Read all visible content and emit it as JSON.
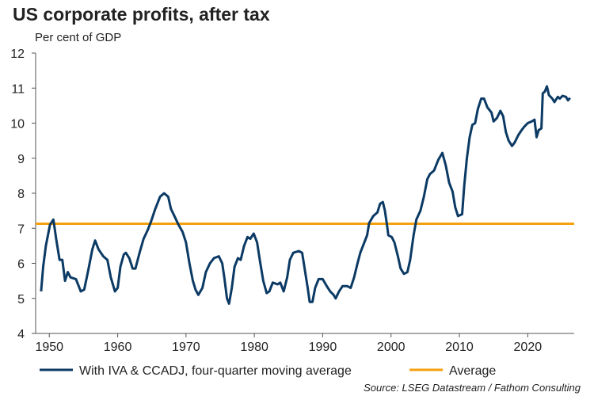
{
  "chart_data": {
    "type": "line",
    "title": "US corporate profits, after tax",
    "subtitle": "Per cent of GDP",
    "source": "Source: LSEG Datastream / Fathom Consulting",
    "x": [
      1948.8,
      1949.1,
      1949.5,
      1950.1,
      1950.6,
      1951.0,
      1951.5,
      1951.9,
      1952.3,
      1952.7,
      1953.1,
      1953.9,
      1954.6,
      1955.1,
      1955.7,
      1956.3,
      1956.7,
      1957.2,
      1957.9,
      1958.5,
      1959.0,
      1959.6,
      1960.0,
      1960.4,
      1960.9,
      1961.2,
      1961.7,
      1962.2,
      1962.6,
      1963.2,
      1963.8,
      1964.4,
      1964.9,
      1965.5,
      1966.2,
      1966.8,
      1967.4,
      1967.8,
      1968.3,
      1968.9,
      1969.5,
      1970.0,
      1970.5,
      1971.0,
      1971.4,
      1971.8,
      1972.4,
      1972.9,
      1973.5,
      1974.1,
      1974.8,
      1975.3,
      1975.6,
      1976.0,
      1976.3,
      1976.7,
      1977.1,
      1977.6,
      1978.0,
      1978.5,
      1979.0,
      1979.4,
      1979.9,
      1980.4,
      1980.8,
      1981.3,
      1981.8,
      1982.2,
      1982.7,
      1983.4,
      1983.8,
      1984.3,
      1984.8,
      1985.2,
      1985.7,
      1986.5,
      1987.0,
      1987.4,
      1987.8,
      1988.1,
      1988.5,
      1988.9,
      1989.4,
      1990.0,
      1990.6,
      1991.1,
      1991.6,
      1991.9,
      1992.4,
      1992.9,
      1993.6,
      1994.1,
      1994.6,
      1995.1,
      1995.5,
      1996.0,
      1996.5,
      1996.8,
      1997.4,
      1998.0,
      1998.4,
      1998.8,
      1999.1,
      1999.4,
      1999.6,
      2000.1,
      2000.5,
      2001.0,
      2001.4,
      2001.9,
      2002.4,
      2002.8,
      2003.3,
      2003.7,
      2004.3,
      2004.8,
      2005.3,
      2005.7,
      2006.3,
      2006.9,
      2007.5,
      2008.0,
      2008.5,
      2009.0,
      2009.4,
      2009.8,
      2010.4,
      2010.7,
      2011.1,
      2011.5,
      2011.9,
      2012.3,
      2012.7,
      2013.2,
      2013.6,
      2014.1,
      2014.7,
      2015.0,
      2015.5,
      2016.0,
      2016.4,
      2016.8,
      2017.2,
      2017.7,
      2018.1,
      2018.6,
      2019.1,
      2019.5,
      2020.0,
      2020.6,
      2021.0,
      2021.3,
      2021.6,
      2022.0,
      2022.2,
      2022.5,
      2022.8,
      2023.1,
      2023.6,
      2023.9,
      2024.4,
      2024.7,
      2025.1,
      2025.6,
      2025.9,
      2026.2
    ],
    "series": [
      {
        "name": "With IVA & CCADJ, four-quarter moving average",
        "color": "#0b3a64",
        "values": [
          5.2,
          5.9,
          6.5,
          7.1,
          7.25,
          6.7,
          6.1,
          6.1,
          5.5,
          5.75,
          5.6,
          5.55,
          5.2,
          5.25,
          5.8,
          6.4,
          6.65,
          6.4,
          6.2,
          6.1,
          5.6,
          5.2,
          5.3,
          5.9,
          6.25,
          6.3,
          6.15,
          5.85,
          5.85,
          6.3,
          6.7,
          6.95,
          7.2,
          7.55,
          7.9,
          8.0,
          7.9,
          7.55,
          7.35,
          7.1,
          6.9,
          6.6,
          6.0,
          5.5,
          5.25,
          5.1,
          5.3,
          5.75,
          6.0,
          6.15,
          6.2,
          6.0,
          5.6,
          5.0,
          4.85,
          5.3,
          5.9,
          6.15,
          6.1,
          6.5,
          6.75,
          6.7,
          6.85,
          6.6,
          6.1,
          5.5,
          5.15,
          5.2,
          5.45,
          5.4,
          5.45,
          5.2,
          5.6,
          6.1,
          6.3,
          6.35,
          6.3,
          5.8,
          5.3,
          4.9,
          4.9,
          5.3,
          5.55,
          5.55,
          5.35,
          5.2,
          5.1,
          5.0,
          5.2,
          5.35,
          5.35,
          5.3,
          5.6,
          6.0,
          6.3,
          6.55,
          6.8,
          7.15,
          7.35,
          7.45,
          7.7,
          7.75,
          7.5,
          7.1,
          6.8,
          6.75,
          6.6,
          6.2,
          5.85,
          5.7,
          5.75,
          6.1,
          6.8,
          7.25,
          7.5,
          7.9,
          8.4,
          8.55,
          8.65,
          8.95,
          9.15,
          8.8,
          8.3,
          8.05,
          7.6,
          7.35,
          7.4,
          8.2,
          9.0,
          9.6,
          9.95,
          10.0,
          10.4,
          10.7,
          10.7,
          10.45,
          10.3,
          10.05,
          10.15,
          10.35,
          10.2,
          9.75,
          9.5,
          9.35,
          9.45,
          9.65,
          9.8,
          9.9,
          10.0,
          10.05,
          10.1,
          9.6,
          9.8,
          9.85,
          10.85,
          10.9,
          11.05,
          10.8,
          10.7,
          10.6,
          10.75,
          10.7,
          10.78,
          10.75,
          10.65,
          10.72
        ]
      }
    ],
    "average": {
      "name": "Average",
      "color": "#f5a10f",
      "value": 7.13
    },
    "xlim": [
      1948,
      2026.8
    ],
    "xticks": [
      1950,
      1960,
      1970,
      1980,
      1990,
      2000,
      2010,
      2020
    ],
    "ylim": [
      4,
      12
    ],
    "yticks": [
      4,
      5,
      6,
      7,
      8,
      9,
      10,
      11,
      12
    ]
  }
}
